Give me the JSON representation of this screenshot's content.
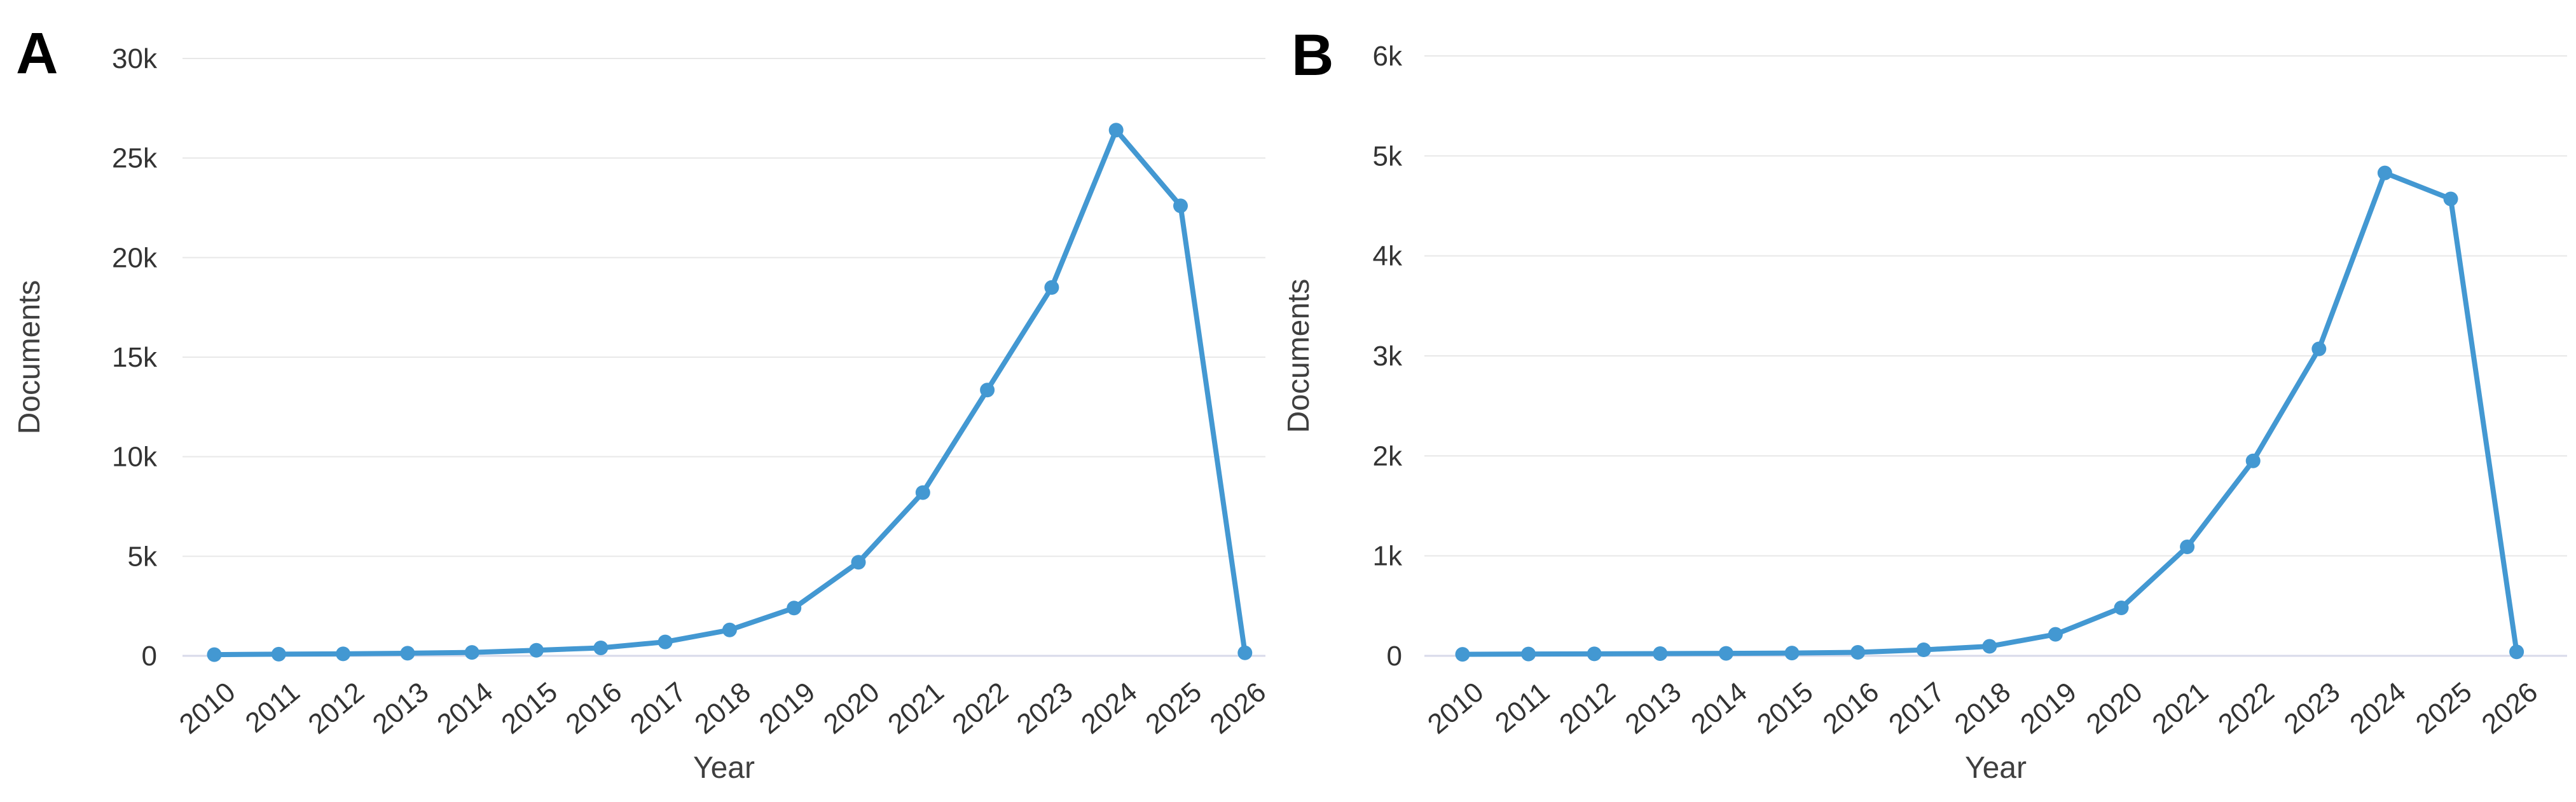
{
  "figure": {
    "description": "Two-panel line figure of document counts per year",
    "panels": [
      "A",
      "B"
    ]
  },
  "colors": {
    "line": "#4398d2",
    "marker": "#4398d2",
    "gridline": "#e8e8e8",
    "zero_line": "#d8daea",
    "tick_text": "#333333",
    "axis_title_text": "#3f3f3f",
    "panel_letter": "#000000",
    "background": "#ffffff"
  },
  "chart_data": [
    {
      "type": "line",
      "panel_label": "A",
      "title": "",
      "xlabel": "Year",
      "ylabel": "Documents",
      "categories": [
        "2010",
        "2011",
        "2012",
        "2013",
        "2014",
        "2015",
        "2016",
        "2017",
        "2018",
        "2019",
        "2020",
        "2021",
        "2022",
        "2023",
        "2024",
        "2025",
        "2026"
      ],
      "values": [
        60,
        85,
        100,
        130,
        170,
        280,
        400,
        700,
        1300,
        2400,
        4700,
        8200,
        13350,
        18500,
        26400,
        22600,
        150
      ],
      "ylim": [
        0,
        30000
      ],
      "yticks": [
        {
          "value": 0,
          "label": "0"
        },
        {
          "value": 5000,
          "label": "5k"
        },
        {
          "value": 10000,
          "label": "10k"
        },
        {
          "value": 15000,
          "label": "15k"
        },
        {
          "value": 20000,
          "label": "20k"
        },
        {
          "value": 25000,
          "label": "25k"
        },
        {
          "value": 30000,
          "label": "30k"
        }
      ],
      "grid": "horizontal",
      "legend": "none",
      "marker": "circle",
      "x_tick_rotation_deg": -40
    },
    {
      "type": "line",
      "panel_label": "B",
      "title": "",
      "xlabel": "Year",
      "ylabel": "Documents",
      "categories": [
        "2010",
        "2011",
        "2012",
        "2013",
        "2014",
        "2015",
        "2016",
        "2017",
        "2018",
        "2019",
        "2020",
        "2021",
        "2022",
        "2023",
        "2024",
        "2025",
        "2026"
      ],
      "values": [
        15,
        18,
        20,
        22,
        25,
        28,
        35,
        60,
        95,
        215,
        480,
        1090,
        1950,
        3070,
        4830,
        4570,
        40
      ],
      "ylim": [
        0,
        6000
      ],
      "yticks": [
        {
          "value": 0,
          "label": "0"
        },
        {
          "value": 1000,
          "label": "1k"
        },
        {
          "value": 2000,
          "label": "2k"
        },
        {
          "value": 3000,
          "label": "3k"
        },
        {
          "value": 4000,
          "label": "4k"
        },
        {
          "value": 5000,
          "label": "5k"
        },
        {
          "value": 6000,
          "label": "6k"
        }
      ],
      "grid": "horizontal",
      "legend": "none",
      "marker": "circle",
      "x_tick_rotation_deg": -40
    }
  ]
}
